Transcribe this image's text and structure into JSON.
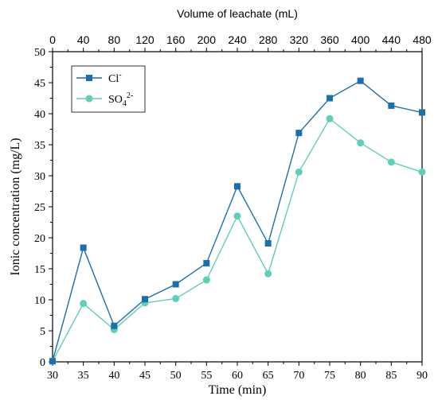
{
  "chart_data": {
    "type": "line",
    "x_bottom": {
      "label": "Time (min)",
      "range": [
        30,
        90
      ],
      "ticks": [
        30,
        35,
        40,
        45,
        50,
        55,
        60,
        65,
        70,
        75,
        80,
        85,
        90
      ]
    },
    "x_top": {
      "label": "Volume of leachate (mL)",
      "range": [
        0,
        480
      ],
      "ticks": [
        0,
        40,
        80,
        120,
        160,
        200,
        240,
        280,
        320,
        360,
        400,
        440,
        480
      ]
    },
    "y": {
      "label": "Ionic concentration (mg/L)",
      "range": [
        0,
        50
      ],
      "ticks": [
        0,
        5,
        10,
        15,
        20,
        25,
        30,
        35,
        40,
        45,
        50
      ]
    },
    "legend_position": "top-left",
    "series": [
      {
        "name": "Cl",
        "superscript": "-",
        "subscript": "",
        "color": "#1a6fad",
        "marker": "square",
        "x": [
          30,
          35,
          40,
          45,
          50,
          55,
          60,
          65,
          70,
          75,
          80,
          85,
          90
        ],
        "y": [
          0.1,
          18.4,
          5.8,
          10.1,
          12.5,
          15.9,
          28.3,
          19.1,
          36.9,
          42.5,
          45.3,
          41.3,
          40.2
        ]
      },
      {
        "name": "SO",
        "subscript": "4",
        "superscript": "2-",
        "color": "#5fd0b8",
        "marker": "circle",
        "x": [
          30,
          35,
          40,
          45,
          50,
          55,
          60,
          65,
          70,
          75,
          80,
          85,
          90
        ],
        "y": [
          0.1,
          9.4,
          5.2,
          9.5,
          10.2,
          13.2,
          23.5,
          14.2,
          30.6,
          39.2,
          35.3,
          32.2,
          30.6
        ]
      }
    ]
  }
}
